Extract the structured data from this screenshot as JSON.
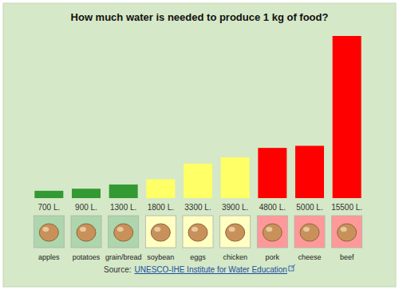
{
  "chart_data": {
    "type": "bar",
    "title": "How much water is needed to produce 1 kg of food?",
    "categories": [
      "apples",
      "potatoes",
      "grain/bread",
      "soybean",
      "eggs",
      "chicken",
      "pork",
      "cheese",
      "beef"
    ],
    "values": [
      700,
      900,
      1300,
      1800,
      3300,
      3900,
      4800,
      5000,
      15500
    ],
    "value_labels": [
      "700 L.",
      "900 L.",
      "1300 L.",
      "1800 L.",
      "3300 L.",
      "3900 L.",
      "4800 L.",
      "5000 L.",
      "15500 L."
    ],
    "colors": [
      "#339933",
      "#339933",
      "#339933",
      "#ffff66",
      "#ffff66",
      "#ffff66",
      "#ff0000",
      "#ff0000",
      "#ff0000"
    ],
    "ylim": [
      0,
      15500
    ],
    "data_labels": true,
    "tick_labels": false,
    "grid": false,
    "source_prefix": "Source:",
    "source": "UNESCO-IHE Institute for Water Education"
  }
}
